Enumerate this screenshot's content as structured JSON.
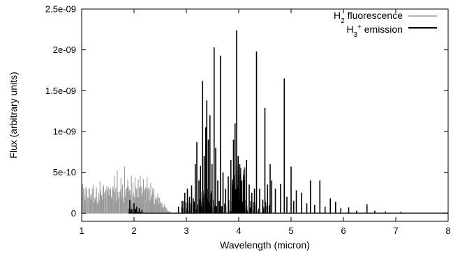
{
  "chart_data": {
    "type": "line",
    "title": "",
    "xlabel": "Wavelength (micron)",
    "ylabel": "Flux (arbitrary units)",
    "xlim": [
      1,
      8
    ],
    "ylim": [
      -1e-10,
      2.5e-09
    ],
    "x_ticks": [
      1,
      2,
      3,
      4,
      5,
      6,
      7,
      8
    ],
    "x_tick_labels": [
      "1",
      "2",
      "3",
      "4",
      "5",
      "6",
      "7",
      "8"
    ],
    "y_ticks": [
      0,
      5e-10,
      1e-09,
      1.5e-09,
      2e-09,
      2.5e-09
    ],
    "y_tick_labels": [
      "0",
      "5e-10",
      "1e-09",
      "1.5e-09",
      "2e-09",
      "2.5e-09"
    ],
    "grid": false,
    "legend_position": "top-right",
    "series": [
      {
        "name_parts": {
          "base": "H",
          "sub": "2",
          "rest": " fluorescence"
        },
        "color": "#9a9a9a",
        "style": "spectrum",
        "lines": [
          [
            1.02,
            3.6e-10
          ],
          [
            1.05,
            2.2e-10
          ],
          [
            1.08,
            3.2e-10
          ],
          [
            1.12,
            1.5e-10
          ],
          [
            1.15,
            3e-10
          ],
          [
            1.18,
            2.4e-10
          ],
          [
            1.22,
            3.4e-10
          ],
          [
            1.25,
            1.8e-10
          ],
          [
            1.28,
            2.9e-10
          ],
          [
            1.32,
            2.5e-10
          ],
          [
            1.35,
            3.9e-10
          ],
          [
            1.38,
            2.1e-10
          ],
          [
            1.42,
            3.4e-10
          ],
          [
            1.45,
            2.7e-10
          ],
          [
            1.48,
            3.3e-10
          ],
          [
            1.52,
            2.2e-10
          ],
          [
            1.55,
            3.1e-10
          ],
          [
            1.58,
            1.9e-10
          ],
          [
            1.62,
            4.5e-10
          ],
          [
            1.65,
            3e-10
          ],
          [
            1.68,
            5.2e-10
          ],
          [
            1.72,
            2.6e-10
          ],
          [
            1.75,
            4.3e-10
          ],
          [
            1.78,
            3.5e-10
          ],
          [
            1.82,
            5.7e-10
          ],
          [
            1.85,
            3e-10
          ],
          [
            1.88,
            4.1e-10
          ],
          [
            1.92,
            2.8e-10
          ],
          [
            1.95,
            4.6e-10
          ],
          [
            1.98,
            3.7e-10
          ],
          [
            2.02,
            4.4e-10
          ],
          [
            2.05,
            2.9e-10
          ],
          [
            2.08,
            4.1e-10
          ],
          [
            2.12,
            4.5e-10
          ],
          [
            2.15,
            3.3e-10
          ],
          [
            2.18,
            4.2e-10
          ],
          [
            2.22,
            2.5e-10
          ],
          [
            2.25,
            4.4e-10
          ],
          [
            2.28,
            3.2e-10
          ],
          [
            2.32,
            3.7e-10
          ],
          [
            2.35,
            2.3e-10
          ],
          [
            2.38,
            3e-10
          ],
          [
            2.42,
            1.6e-10
          ],
          [
            2.45,
            1.9e-10
          ],
          [
            2.48,
            1.1e-10
          ],
          [
            2.52,
            8e-11
          ],
          [
            2.55,
            5e-11
          ],
          [
            2.6,
            3e-11
          ],
          [
            2.7,
            2e-11
          ],
          [
            2.8,
            1.5e-11
          ],
          [
            3.0,
            1e-11
          ],
          [
            3.2,
            1.2e-11
          ],
          [
            3.45,
            8e-11
          ],
          [
            3.5,
            6e-11
          ],
          [
            3.6,
            5e-11
          ],
          [
            3.8,
            7e-11
          ],
          [
            3.9,
            9e-11
          ],
          [
            4.0,
            5e-11
          ],
          [
            4.1,
            3e-11
          ],
          [
            4.5,
            1e-11
          ]
        ],
        "band": {
          "x_start": 1.0,
          "x_end": 2.7,
          "y_top": 3e-10,
          "fade_from": 2.35
        }
      },
      {
        "name_parts": {
          "base": "H",
          "sub": "3",
          "sup": "+",
          "rest": " emission"
        },
        "color": "#000000",
        "style": "spectrum",
        "lines": [
          [
            1.92,
            1.6e-10
          ],
          [
            1.96,
            5e-11
          ],
          [
            2.0,
            1.2e-10
          ],
          [
            2.05,
            8e-11
          ],
          [
            2.1,
            6e-11
          ],
          [
            2.15,
            4e-11
          ],
          [
            2.85,
            8e-11
          ],
          [
            2.92,
            1.5e-10
          ],
          [
            2.97,
            2.5e-10
          ],
          [
            3.02,
            3e-10
          ],
          [
            3.06,
            2e-10
          ],
          [
            3.1,
            3.4e-10
          ],
          [
            3.13,
            1.8e-10
          ],
          [
            3.17,
            6e-10
          ],
          [
            3.2,
            8.7e-10
          ],
          [
            3.24,
            4e-10
          ],
          [
            3.27,
            5.8e-10
          ],
          [
            3.31,
            1.62e-09
          ],
          [
            3.34,
            7e-10
          ],
          [
            3.37,
            1.05e-09
          ],
          [
            3.39,
            1.38e-09
          ],
          [
            3.42,
            9e-10
          ],
          [
            3.45,
            1.2e-09
          ],
          [
            3.49,
            6e-10
          ],
          [
            3.53,
            2.03e-09
          ],
          [
            3.56,
            8e-10
          ],
          [
            3.6,
            4e-10
          ],
          [
            3.65,
            1.93e-09
          ],
          [
            3.7,
            5e-10
          ],
          [
            3.75,
            3e-10
          ],
          [
            3.8,
            4.5e-10
          ],
          [
            3.85,
            6.5e-10
          ],
          [
            3.9,
            9e-10
          ],
          [
            3.93,
            1.1e-09
          ],
          [
            3.96,
            2.24e-09
          ],
          [
            3.99,
            7e-10
          ],
          [
            4.02,
            6e-10
          ],
          [
            4.06,
            4e-10
          ],
          [
            4.1,
            3e-10
          ],
          [
            4.15,
            6.5e-10
          ],
          [
            4.2,
            3.5e-10
          ],
          [
            4.25,
            2.5e-10
          ],
          [
            4.3,
            3e-10
          ],
          [
            4.34,
            1.98e-09
          ],
          [
            4.4,
            3e-10
          ],
          [
            4.46,
            1.6e-10
          ],
          [
            4.5,
            1.29e-09
          ],
          [
            4.55,
            3.5e-10
          ],
          [
            4.6,
            6e-10
          ],
          [
            4.63,
            4e-10
          ],
          [
            4.7,
            3e-10
          ],
          [
            4.8,
            3.6e-10
          ],
          [
            4.87,
            1.65e-09
          ],
          [
            4.92,
            2e-10
          ],
          [
            5.0,
            5.7e-10
          ],
          [
            5.05,
            1.5e-10
          ],
          [
            5.1,
            2.8e-10
          ],
          [
            5.2,
            2.5e-10
          ],
          [
            5.3,
            1.2e-10
          ],
          [
            5.37,
            4e-10
          ],
          [
            5.45,
            1e-10
          ],
          [
            5.55,
            4e-10
          ],
          [
            5.65,
            8e-11
          ],
          [
            5.75,
            1.8e-10
          ],
          [
            5.85,
            1.4e-10
          ],
          [
            5.95,
            6e-11
          ],
          [
            6.1,
            7e-11
          ],
          [
            6.25,
            3e-11
          ],
          [
            6.45,
            1.1e-10
          ],
          [
            6.6,
            3e-11
          ],
          [
            6.8,
            2e-11
          ],
          [
            7.1,
            1.5e-11
          ]
        ],
        "clusters": [
          {
            "x_start": 2.9,
            "x_end": 4.65,
            "y_top": 1.6e-10,
            "density": 120
          },
          {
            "x_start": 3.85,
            "x_end": 4.12,
            "y_top": 5.5e-10,
            "density": 50
          },
          {
            "x_start": 3.25,
            "x_end": 3.5,
            "y_top": 3e-10,
            "density": 30
          },
          {
            "x_start": 1.9,
            "x_end": 2.15,
            "y_top": 6e-11,
            "density": 15
          }
        ]
      }
    ]
  }
}
